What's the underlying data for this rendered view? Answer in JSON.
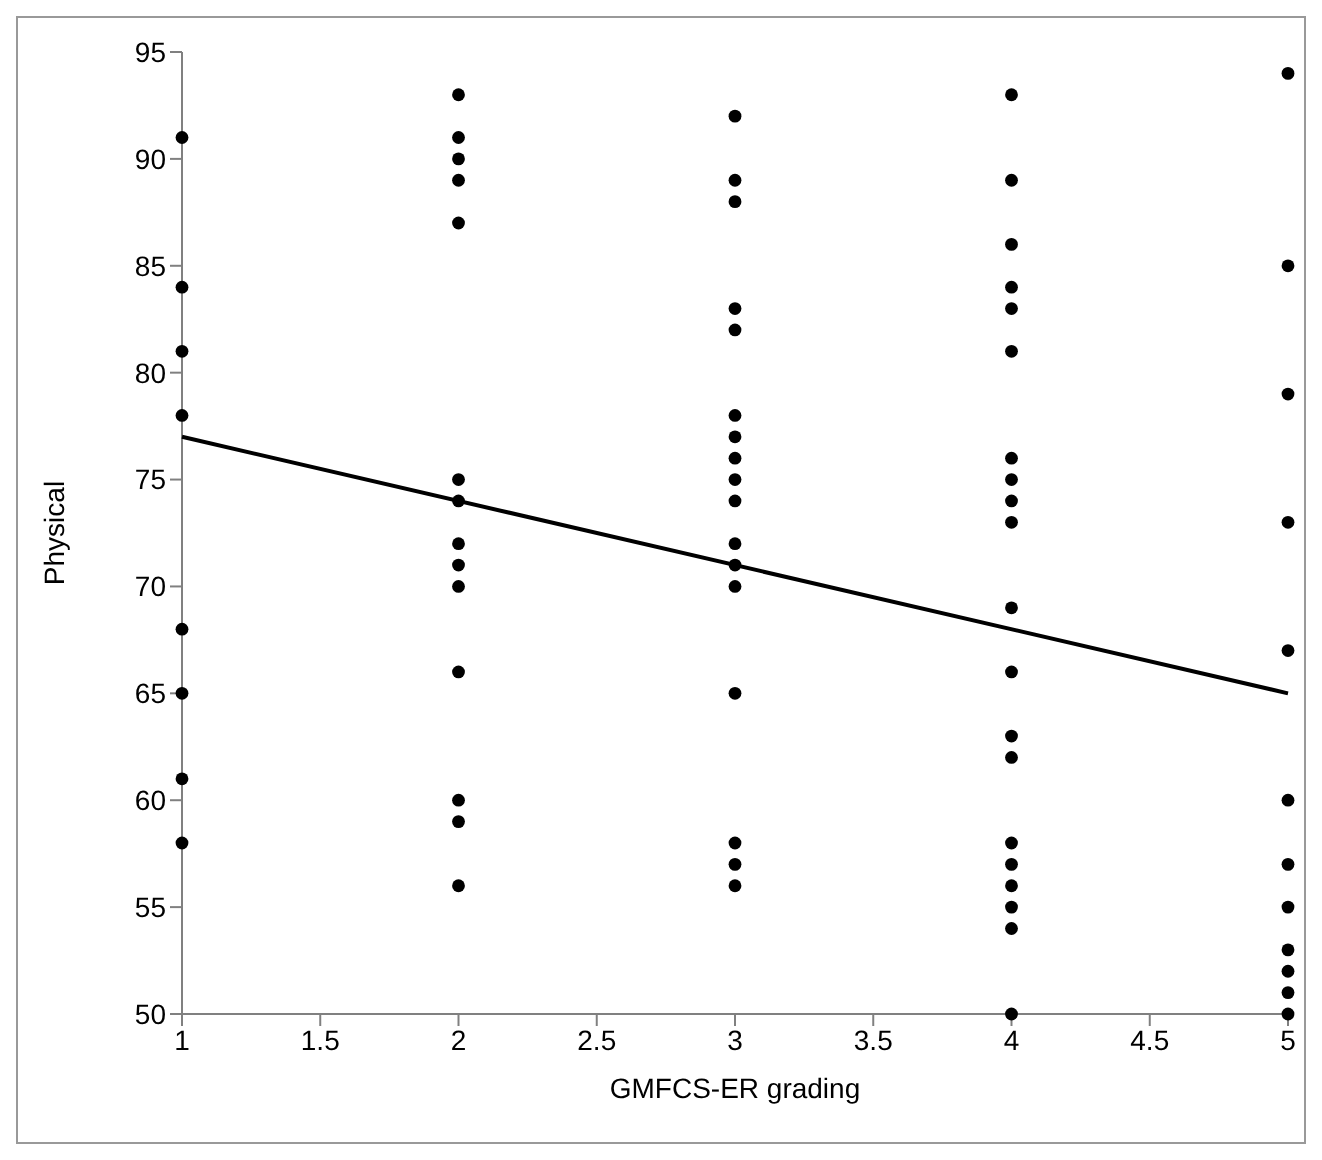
{
  "chart_data": {
    "type": "scatter",
    "xlabel": "GMFCS-ER grading",
    "ylabel": "Physical",
    "xlim": [
      1,
      5
    ],
    "xticks": [
      1,
      1.5,
      2,
      2.5,
      3,
      3.5,
      4,
      4.5,
      5
    ],
    "ylim": [
      50,
      95
    ],
    "yticks": [
      50,
      55,
      60,
      65,
      70,
      75,
      80,
      85,
      90,
      95
    ],
    "grid": false,
    "marker": "circle",
    "series": [
      {
        "color": "#000000",
        "x": [
          1,
          1,
          1,
          1,
          1,
          1,
          1,
          1,
          2,
          2,
          2,
          2,
          2,
          2,
          2,
          2,
          2,
          2,
          2,
          2,
          2,
          2,
          3,
          3,
          3,
          3,
          3,
          3,
          3,
          3,
          3,
          3,
          3,
          3,
          3,
          3,
          3,
          3,
          3,
          4,
          4,
          4,
          4,
          4,
          4,
          4,
          4,
          4,
          4,
          4,
          4,
          4,
          4,
          4,
          4,
          4,
          4,
          4,
          4,
          5,
          5,
          5,
          5,
          5,
          5,
          5,
          5,
          5,
          5,
          5,
          5
        ],
        "values": [
          91,
          84,
          81,
          78,
          68,
          65,
          61,
          58,
          93,
          91,
          90,
          89,
          87,
          75,
          74,
          72,
          71,
          70,
          66,
          60,
          59,
          56,
          92,
          89,
          88,
          83,
          82,
          78,
          77,
          76,
          75,
          74,
          72,
          71,
          70,
          65,
          58,
          57,
          56,
          93,
          89,
          86,
          84,
          83,
          81,
          76,
          75,
          74,
          73,
          69,
          66,
          63,
          62,
          58,
          57,
          56,
          55,
          54,
          50,
          94,
          85,
          79,
          73,
          67,
          60,
          57,
          55,
          53,
          52,
          51,
          50
        ]
      },
      {
        "type": "line",
        "color": "#000000",
        "x": [
          1,
          5
        ],
        "values": [
          77,
          65
        ],
        "marker": "none",
        "line_style": "solid"
      }
    ]
  }
}
